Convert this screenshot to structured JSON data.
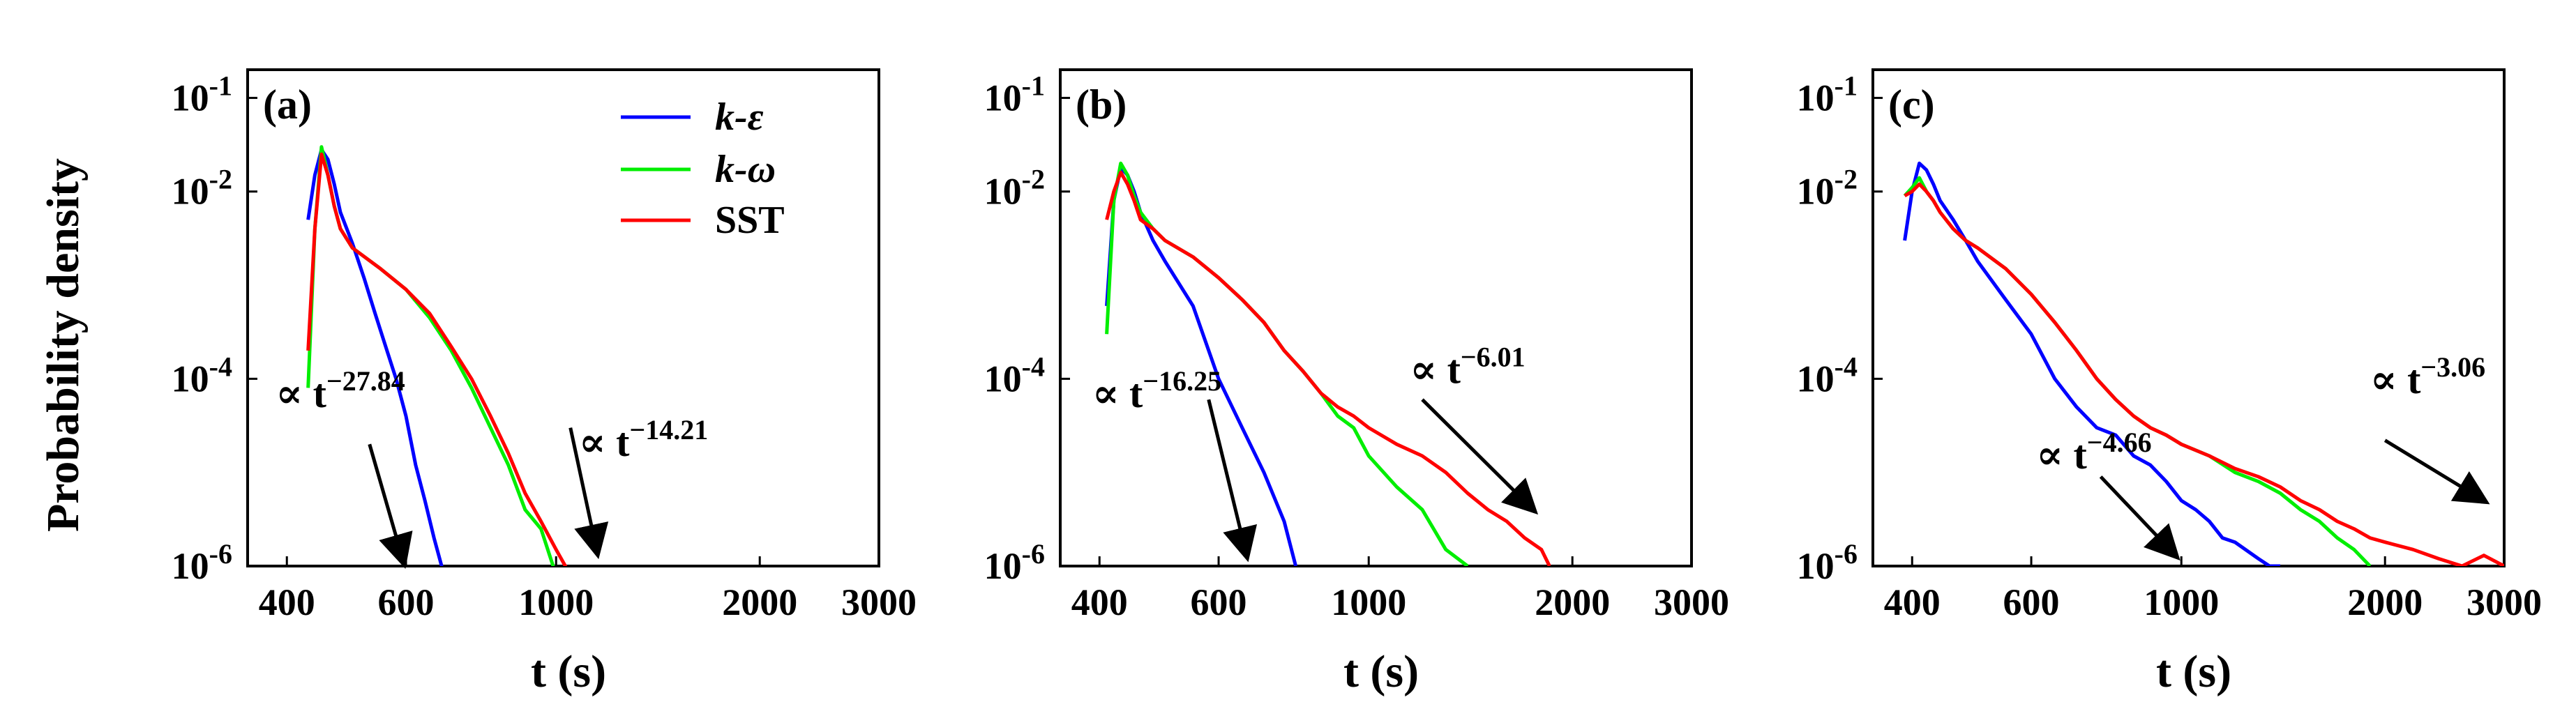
{
  "figure": {
    "ylabel": "Probability density",
    "xlabel": "t (s)",
    "legend": [
      "k-ε",
      "k-ω",
      "SST"
    ]
  },
  "colors": {
    "k-ε": "#0000ff",
    "k-ω": "#00ee00",
    "SST": "#ff0000"
  },
  "chart_data": [
    {
      "type": "line",
      "panel_label": "(a)",
      "xscale": "log",
      "yscale": "log",
      "xlim": [
        350,
        3000
      ],
      "ylim": [
        1e-06,
        0.2
      ],
      "xticks": [
        400,
        600,
        1000,
        2000,
        3000
      ],
      "yticks": [
        {
          "value": 1e-06,
          "base": "10",
          "exp": "-6"
        },
        {
          "value": 0.0001,
          "base": "10",
          "exp": "-4"
        },
        {
          "value": 0.01,
          "base": "10",
          "exp": "-2"
        },
        {
          "value": 0.1,
          "base": "10",
          "exp": "-1"
        }
      ],
      "series": [
        {
          "name": "k-ε",
          "x": [
            430,
            440,
            450,
            460,
            470,
            480,
            500,
            520,
            540,
            560,
            580,
            600,
            620,
            640,
            660,
            680
          ],
          "y": [
            0.005,
            0.015,
            0.028,
            0.022,
            0.012,
            0.006,
            0.0028,
            0.0012,
            0.0005,
            0.00022,
            0.0001,
            4e-05,
            1.2e-05,
            5e-06,
            2e-06,
            9e-07
          ]
        },
        {
          "name": "k-ω",
          "x": [
            430,
            440,
            450,
            460,
            470,
            480,
            500,
            550,
            600,
            650,
            700,
            750,
            800,
            850,
            900,
            950,
            1000
          ],
          "y": [
            8e-05,
            0.004,
            0.03,
            0.015,
            0.007,
            0.004,
            0.0025,
            0.0015,
            0.0009,
            0.00045,
            0.0002,
            8e-05,
            3e-05,
            1.2e-05,
            4e-06,
            2.5e-06,
            8e-07
          ]
        },
        {
          "name": "SST",
          "x": [
            430,
            440,
            450,
            460,
            470,
            480,
            500,
            550,
            600,
            650,
            700,
            750,
            800,
            850,
            900,
            950,
            1000,
            1050
          ],
          "y": [
            0.0002,
            0.004,
            0.025,
            0.015,
            0.007,
            0.004,
            0.0025,
            0.0015,
            0.0009,
            0.0005,
            0.00022,
            0.0001,
            4e-05,
            1.6e-05,
            6e-06,
            3e-06,
            1.5e-06,
            8e-07
          ]
        }
      ],
      "annotations": [
        {
          "base": "∝ t",
          "exp": "−27.84",
          "arrow": {
            "from": [
              530,
              2e-05
            ],
            "to": [
              595,
              1.1e-06
            ]
          },
          "text_at": [
            385,
            5e-05
          ]
        },
        {
          "base": "∝ t",
          "exp": "−14.21",
          "arrow": {
            "from": [
              1050,
              3e-05
            ],
            "to": [
              1150,
              1.4e-06
            ]
          },
          "text_at": [
            1080,
            1.5e-05
          ]
        }
      ],
      "legend_position": "top-right"
    },
    {
      "type": "line",
      "panel_label": "(b)",
      "xscale": "log",
      "yscale": "log",
      "xlim": [
        350,
        3000
      ],
      "ylim": [
        1e-06,
        0.2
      ],
      "xticks": [
        400,
        600,
        1000,
        2000,
        3000
      ],
      "yticks": [
        {
          "value": 1e-06,
          "base": "10",
          "exp": "-6"
        },
        {
          "value": 0.0001,
          "base": "10",
          "exp": "-4"
        },
        {
          "value": 0.01,
          "base": "10",
          "exp": "-2"
        },
        {
          "value": 0.1,
          "base": "10",
          "exp": "-1"
        }
      ],
      "series": [
        {
          "name": "k-ε",
          "x": [
            410,
            420,
            430,
            440,
            450,
            460,
            480,
            500,
            550,
            600,
            650,
            700,
            750,
            780
          ],
          "y": [
            0.0006,
            0.008,
            0.018,
            0.015,
            0.01,
            0.006,
            0.003,
            0.0018,
            0.0006,
            0.0001,
            3e-05,
            1e-05,
            3e-06,
            1e-06
          ]
        },
        {
          "name": "k-ω",
          "x": [
            410,
            420,
            430,
            440,
            450,
            460,
            480,
            500,
            550,
            600,
            650,
            700,
            750,
            800,
            850,
            900,
            950,
            1000,
            1100,
            1200,
            1300,
            1400
          ],
          "y": [
            0.0003,
            0.008,
            0.02,
            0.015,
            0.009,
            0.006,
            0.004,
            0.003,
            0.002,
            0.0012,
            0.0007,
            0.0004,
            0.0002,
            0.00012,
            7e-05,
            4e-05,
            3e-05,
            1.5e-05,
            7e-06,
            4e-06,
            1.5e-06,
            1e-06
          ]
        },
        {
          "name": "SST",
          "x": [
            410,
            420,
            430,
            440,
            450,
            460,
            480,
            500,
            550,
            600,
            650,
            700,
            750,
            800,
            850,
            900,
            950,
            1000,
            1100,
            1200,
            1300,
            1400,
            1500,
            1600,
            1700,
            1800,
            1850
          ],
          "y": [
            0.005,
            0.01,
            0.016,
            0.012,
            0.008,
            0.005,
            0.004,
            0.003,
            0.002,
            0.0012,
            0.0007,
            0.0004,
            0.0002,
            0.00012,
            7e-05,
            5e-05,
            4e-05,
            3e-05,
            2e-05,
            1.5e-05,
            1e-05,
            6e-06,
            4e-06,
            3e-06,
            2e-06,
            1.5e-06,
            1e-06
          ]
        }
      ],
      "annotations": [
        {
          "base": "∝ t",
          "exp": "−16.25",
          "arrow": {
            "from": [
              580,
              6e-05
            ],
            "to": [
              660,
              1.3e-06
            ]
          },
          "text_at": [
            390,
            5e-05
          ]
        },
        {
          "base": "∝ t",
          "exp": "−6.01",
          "arrow": {
            "from": [
              1200,
              6e-05
            ],
            "to": [
              1750,
              4e-06
            ]
          },
          "text_at": [
            1150,
            9e-05
          ]
        }
      ]
    },
    {
      "type": "line",
      "panel_label": "(c)",
      "xscale": "log",
      "yscale": "log",
      "xlim": [
        350,
        3000
      ],
      "ylim": [
        1e-06,
        0.2
      ],
      "xticks": [
        400,
        600,
        1000,
        2000,
        3000
      ],
      "yticks": [
        {
          "value": 1e-06,
          "base": "10",
          "exp": "-6"
        },
        {
          "value": 0.0001,
          "base": "10",
          "exp": "-4"
        },
        {
          "value": 0.01,
          "base": "10",
          "exp": "-2"
        },
        {
          "value": 0.1,
          "base": "10",
          "exp": "-1"
        }
      ],
      "series": [
        {
          "name": "k-ε",
          "x": [
            390,
            400,
            410,
            420,
            430,
            440,
            460,
            480,
            500,
            550,
            600,
            650,
            700,
            750,
            800,
            850,
            900,
            950,
            1000,
            1050,
            1100,
            1150,
            1200,
            1300,
            1350,
            1400
          ],
          "y": [
            0.003,
            0.01,
            0.02,
            0.017,
            0.012,
            0.008,
            0.005,
            0.003,
            0.0018,
            0.0007,
            0.0003,
            0.0001,
            5e-05,
            3e-05,
            2.5e-05,
            1.5e-05,
            1.2e-05,
            8e-06,
            5e-06,
            4e-06,
            3e-06,
            2e-06,
            1.8e-06,
            1.2e-06,
            1e-06,
            1e-06
          ]
        },
        {
          "name": "k-ω",
          "x": [
            390,
            400,
            410,
            420,
            430,
            440,
            460,
            480,
            500,
            550,
            600,
            650,
            700,
            750,
            800,
            850,
            900,
            950,
            1000,
            1100,
            1200,
            1300,
            1400,
            1500,
            1600,
            1700,
            1800,
            1900
          ],
          "y": [
            0.009,
            0.011,
            0.014,
            0.01,
            0.008,
            0.006,
            0.004,
            0.003,
            0.0025,
            0.0015,
            0.0008,
            0.0004,
            0.0002,
            0.0001,
            6e-05,
            4e-05,
            3e-05,
            2.5e-05,
            2e-05,
            1.5e-05,
            1e-05,
            8e-06,
            6e-06,
            4e-06,
            3e-06,
            2e-06,
            1.5e-06,
            1e-06
          ]
        },
        {
          "name": "SST",
          "x": [
            390,
            400,
            410,
            420,
            430,
            440,
            460,
            480,
            500,
            550,
            600,
            650,
            700,
            750,
            800,
            850,
            900,
            950,
            1000,
            1100,
            1200,
            1300,
            1400,
            1500,
            1600,
            1700,
            1800,
            1900,
            2000,
            2200,
            2400,
            2600,
            2800,
            3000
          ],
          "y": [
            0.009,
            0.01,
            0.012,
            0.01,
            0.008,
            0.006,
            0.004,
            0.003,
            0.0025,
            0.0015,
            0.0008,
            0.0004,
            0.0002,
            0.0001,
            6e-05,
            4e-05,
            3e-05,
            2.5e-05,
            2e-05,
            1.5e-05,
            1.1e-05,
            9e-06,
            7e-06,
            5e-06,
            4e-06,
            3e-06,
            2.5e-06,
            2e-06,
            1.8e-06,
            1.5e-06,
            1.2e-06,
            1e-06,
            1.3e-06,
            1e-06
          ]
        }
      ],
      "annotations": [
        {
          "base": "∝ t",
          "exp": "−4.66",
          "arrow": {
            "from": [
              760,
              9e-06
            ],
            "to": [
              980,
              1.3e-06
            ]
          },
          "text_at": [
            610,
            1.1e-05
          ]
        },
        {
          "base": "∝ t",
          "exp": "−3.06",
          "arrow": {
            "from": [
              2000,
              2.2e-05
            ],
            "to": [
              2800,
              5e-06
            ]
          },
          "text_at": [
            1900,
            7e-05
          ]
        }
      ]
    }
  ]
}
